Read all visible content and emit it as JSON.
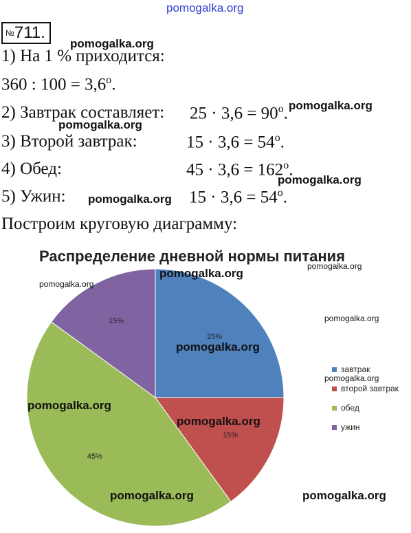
{
  "watermarks": {
    "top": "pomogalka.org",
    "w1": "pomogalka.org",
    "w2": "pomogalka.org",
    "w3": "pomogalka.org",
    "w4": "pomogalka.org",
    "w5": "pomogalka.org",
    "w6": "pomogalka.org",
    "w7": "pomogalka.org",
    "w8": "pomogalka.org",
    "w9": "pomogalka.org",
    "w10": "pomogalka.org",
    "w11": "pomogalka.org",
    "w12": "pomogalka.org",
    "w13": "pomogalka.org",
    "w14": "pomogalka.org",
    "w15": "pomogalka.org",
    "w16": "pomogalka.org"
  },
  "problem": {
    "number_sign": "№",
    "number": "711."
  },
  "lines": {
    "l1": "1) На 1 % приходится:",
    "l2": "360 : 100 = 3,6",
    "l3_label": "2) Завтрак составляет:",
    "l3_calc": "25 · 3,6 = 90",
    "l4_label": "3) Второй завтрак:",
    "l4_calc": "15 · 3,6 = 54",
    "l5_label": "4) Обед:",
    "l5_calc": "45 · 3,6 = 162",
    "l6_label": "5) Ужин:",
    "l6_calc": "15 · 3,6 = 54",
    "l7": "Построим круговую диаграмму:",
    "degree": "о",
    "dot": "."
  },
  "chart_data": {
    "type": "pie",
    "title": "Распределение дневной нормы питания",
    "categories": [
      "завтрак",
      "второй завтрак",
      "обед",
      "ужин"
    ],
    "values": [
      25,
      15,
      45,
      15
    ],
    "labels": [
      "25%",
      "15%",
      "45%",
      "15%"
    ],
    "colors": [
      "#4f81bd",
      "#c0504d",
      "#9bbb59",
      "#8064a2"
    ],
    "legend_placement": "right"
  }
}
